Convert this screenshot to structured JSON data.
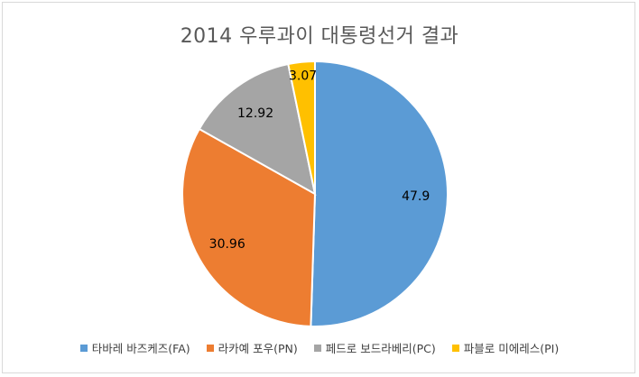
{
  "chart_data": {
    "type": "pie",
    "title": "2014 우루과이 대통령선거 결과",
    "series": [
      {
        "name": "타바레 바즈케즈(FA)",
        "value": 47.9,
        "label": "47.9",
        "color": "#5b9bd5"
      },
      {
        "name": "라카예 포우(PN)",
        "value": 30.96,
        "label": "30.96",
        "color": "#ed7d31"
      },
      {
        "name": "페드로 보드라베리(PC)",
        "value": 12.92,
        "label": "12.92",
        "color": "#a5a5a5"
      },
      {
        "name": "파블로 미에레스(PI)",
        "value": 3.07,
        "label": "3.07",
        "color": "#ffc000"
      }
    ],
    "start": "12 o'clock",
    "direction": "clockwise",
    "legend_position": "bottom"
  }
}
